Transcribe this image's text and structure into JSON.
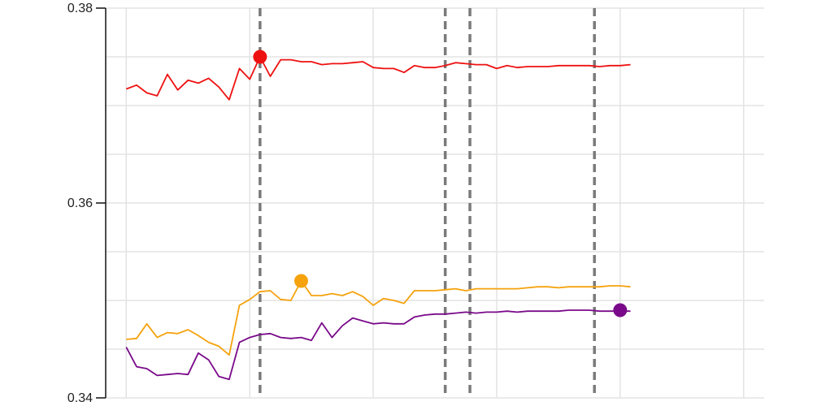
{
  "chart_data": {
    "type": "line",
    "title": "",
    "xlabel": "",
    "ylabel": "",
    "ylim": [
      0.34,
      0.38
    ],
    "xlim": [
      -2,
      62
    ],
    "yticks": [
      {
        "value": 0.34,
        "label": "0.34"
      },
      {
        "value": 0.36,
        "label": "0.36"
      },
      {
        "value": 0.38,
        "label": "0.38"
      }
    ],
    "ygrid": [
      0.34,
      0.345,
      0.35,
      0.355,
      0.36,
      0.365,
      0.37,
      0.375,
      0.38
    ],
    "xgrid": [
      0,
      12,
      24,
      36,
      48,
      60
    ],
    "grid": true,
    "vlines": [
      13,
      31,
      33.4,
      45.5
    ],
    "series": [
      {
        "color": "#ee1111",
        "values": [
          0.3717,
          0.3721,
          0.3713,
          0.371,
          0.3732,
          0.3716,
          0.3726,
          0.3723,
          0.3728,
          0.3719,
          0.3706,
          0.3738,
          0.3727,
          0.375,
          0.373,
          0.3747,
          0.3747,
          0.3745,
          0.3745,
          0.3742,
          0.3743,
          0.3743,
          0.3744,
          0.3745,
          0.3739,
          0.3738,
          0.3738,
          0.3734,
          0.3741,
          0.3739,
          0.3739,
          0.3741,
          0.3744,
          0.3743,
          0.3742,
          0.3742,
          0.3738,
          0.3741,
          0.3739,
          0.374,
          0.374,
          0.374,
          0.3741,
          0.3741,
          0.3741,
          0.3741,
          0.374,
          0.3741,
          0.3741,
          0.3742
        ],
        "highlight_index": 13,
        "highlight_value": 0.375
      },
      {
        "color": "#f5a20d",
        "values": [
          0.346,
          0.3461,
          0.3476,
          0.3462,
          0.3467,
          0.3466,
          0.347,
          0.3464,
          0.3457,
          0.3453,
          0.3444,
          0.3495,
          0.3501,
          0.3509,
          0.351,
          0.3501,
          0.35,
          0.352,
          0.3505,
          0.3505,
          0.3507,
          0.3505,
          0.3509,
          0.3504,
          0.3495,
          0.3502,
          0.35,
          0.3497,
          0.351,
          0.351,
          0.351,
          0.3511,
          0.3512,
          0.351,
          0.3512,
          0.3512,
          0.3512,
          0.3512,
          0.3512,
          0.3513,
          0.3514,
          0.3514,
          0.3513,
          0.3514,
          0.3514,
          0.3514,
          0.3514,
          0.3515,
          0.3515,
          0.3514
        ],
        "highlight_index": 17,
        "highlight_value": 0.352
      },
      {
        "color": "#7a0a8a",
        "values": [
          0.3452,
          0.3432,
          0.343,
          0.3423,
          0.3424,
          0.3425,
          0.3424,
          0.3446,
          0.3439,
          0.3422,
          0.3419,
          0.3457,
          0.3462,
          0.3465,
          0.3466,
          0.3462,
          0.3461,
          0.3462,
          0.3459,
          0.3477,
          0.3462,
          0.3474,
          0.3482,
          0.3479,
          0.3476,
          0.3477,
          0.3476,
          0.3476,
          0.3483,
          0.3485,
          0.3486,
          0.3486,
          0.3487,
          0.3488,
          0.3487,
          0.3488,
          0.3488,
          0.3489,
          0.3488,
          0.3489,
          0.3489,
          0.3489,
          0.3489,
          0.349,
          0.349,
          0.349,
          0.3489,
          0.3489,
          0.3489,
          0.3489
        ],
        "highlight_index": 48,
        "highlight_value": 0.349
      }
    ]
  }
}
